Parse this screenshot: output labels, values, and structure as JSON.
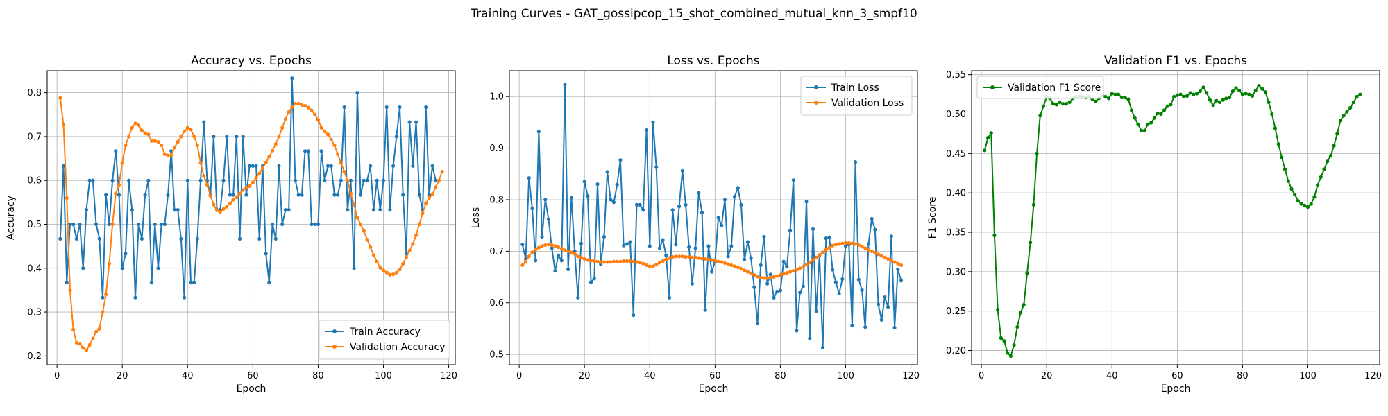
{
  "figure": {
    "suptitle": "Training Curves - GAT_gossipcop_15_shot_combined_mutual_knn_3_smpf10"
  },
  "chart_data": [
    {
      "type": "line",
      "title": "Accuracy vs. Epochs",
      "xlabel": "Epoch",
      "ylabel": "Accuracy",
      "xlim": [
        -3,
        122
      ],
      "ylim": [
        0.18,
        0.85
      ],
      "xticks": [
        0,
        20,
        40,
        60,
        80,
        100,
        120
      ],
      "yticks": [
        0.2,
        0.3,
        0.4,
        0.5,
        0.6,
        0.7,
        0.8
      ],
      "ytick_labels": [
        "0.2",
        "0.3",
        "0.4",
        "0.5",
        "0.6",
        "0.7",
        "0.8"
      ],
      "grid": true,
      "legend_position": "lower-right",
      "series": [
        {
          "name": "Train Accuracy",
          "color": "#1f77b4",
          "values": [
            0.467,
            0.633,
            0.367,
            0.5,
            0.5,
            0.467,
            0.5,
            0.4,
            0.533,
            0.6,
            0.6,
            0.5,
            0.467,
            0.333,
            0.567,
            0.5,
            0.6,
            0.667,
            0.567,
            0.4,
            0.433,
            0.6,
            0.533,
            0.333,
            0.5,
            0.467,
            0.567,
            0.6,
            0.367,
            0.5,
            0.4,
            0.5,
            0.5,
            0.567,
            0.667,
            0.533,
            0.533,
            0.467,
            0.333,
            0.6,
            0.367,
            0.367,
            0.467,
            0.6,
            0.733,
            0.6,
            0.567,
            0.7,
            0.533,
            0.533,
            0.6,
            0.7,
            0.567,
            0.567,
            0.7,
            0.467,
            0.7,
            0.567,
            0.633,
            0.633,
            0.633,
            0.467,
            0.633,
            0.433,
            0.367,
            0.5,
            0.467,
            0.633,
            0.5,
            0.533,
            0.533,
            0.833,
            0.6,
            0.567,
            0.567,
            0.667,
            0.667,
            0.5,
            0.5,
            0.5,
            0.667,
            0.6,
            0.633,
            0.633,
            0.567,
            0.567,
            0.6,
            0.767,
            0.533,
            0.6,
            0.4,
            0.8,
            0.567,
            0.6,
            0.6,
            0.633,
            0.533,
            0.6,
            0.533,
            0.6,
            0.767,
            0.533,
            0.633,
            0.7,
            0.767,
            0.567,
            0.433,
            0.733,
            0.633,
            0.733,
            0.567,
            0.533,
            0.767,
            0.567,
            0.633,
            0.6
          ]
        },
        {
          "name": "Validation Accuracy",
          "color": "#ff7f0e",
          "values": [
            0.788,
            0.727,
            0.56,
            0.35,
            0.26,
            0.23,
            0.228,
            0.218,
            0.213,
            0.225,
            0.24,
            0.255,
            0.262,
            0.3,
            0.34,
            0.41,
            0.5,
            0.57,
            0.59,
            0.64,
            0.68,
            0.7,
            0.72,
            0.73,
            0.726,
            0.714,
            0.708,
            0.705,
            0.69,
            0.69,
            0.688,
            0.68,
            0.66,
            0.657,
            0.657,
            0.675,
            0.688,
            0.7,
            0.712,
            0.72,
            0.716,
            0.7,
            0.68,
            0.64,
            0.61,
            0.59,
            0.565,
            0.545,
            0.532,
            0.528,
            0.535,
            0.54,
            0.548,
            0.556,
            0.562,
            0.57,
            0.578,
            0.584,
            0.587,
            0.595,
            0.606,
            0.616,
            0.628,
            0.641,
            0.654,
            0.668,
            0.683,
            0.7,
            0.72,
            0.74,
            0.756,
            0.768,
            0.775,
            0.775,
            0.772,
            0.77,
            0.766,
            0.76,
            0.75,
            0.738,
            0.72,
            0.712,
            0.705,
            0.693,
            0.68,
            0.66,
            0.64,
            0.62,
            0.6,
            0.57,
            0.545,
            0.515,
            0.5,
            0.485,
            0.465,
            0.448,
            0.43,
            0.415,
            0.401,
            0.395,
            0.39,
            0.385,
            0.386,
            0.39,
            0.397,
            0.41,
            0.425,
            0.44,
            0.455,
            0.475,
            0.5,
            0.525,
            0.548,
            0.56,
            0.568,
            0.585,
            0.6,
            0.62
          ]
        }
      ]
    },
    {
      "type": "line",
      "title": "Loss vs. Epochs",
      "xlabel": "Epoch",
      "ylabel": "Loss",
      "xlim": [
        -3,
        122
      ],
      "ylim": [
        0.48,
        1.05
      ],
      "xticks": [
        0,
        20,
        40,
        60,
        80,
        100,
        120
      ],
      "yticks": [
        0.5,
        0.6,
        0.7,
        0.8,
        0.9,
        1.0
      ],
      "ytick_labels": [
        "0.5",
        "0.6",
        "0.7",
        "0.8",
        "0.9",
        "1.0"
      ],
      "grid": true,
      "legend_position": "top-right",
      "series": [
        {
          "name": "Train Loss",
          "color": "#1f77b4",
          "values": [
            0.713,
            0.685,
            0.842,
            0.783,
            0.682,
            0.932,
            0.728,
            0.8,
            0.762,
            0.706,
            0.662,
            0.692,
            0.682,
            1.023,
            0.665,
            0.804,
            0.7,
            0.61,
            0.715,
            0.835,
            0.807,
            0.64,
            0.647,
            0.83,
            0.675,
            0.728,
            0.854,
            0.8,
            0.795,
            0.829,
            0.877,
            0.711,
            0.714,
            0.718,
            0.576,
            0.79,
            0.79,
            0.78,
            0.935,
            0.71,
            0.95,
            0.863,
            0.706,
            0.722,
            0.692,
            0.61,
            0.78,
            0.713,
            0.787,
            0.856,
            0.79,
            0.708,
            0.637,
            0.706,
            0.813,
            0.775,
            0.586,
            0.71,
            0.66,
            0.68,
            0.765,
            0.75,
            0.8,
            0.69,
            0.71,
            0.806,
            0.823,
            0.79,
            0.684,
            0.718,
            0.687,
            0.63,
            0.56,
            0.673,
            0.728,
            0.637,
            0.655,
            0.61,
            0.622,
            0.624,
            0.68,
            0.67,
            0.74,
            0.838,
            0.546,
            0.62,
            0.632,
            0.796,
            0.531,
            0.743,
            0.584,
            0.692,
            0.513,
            0.725,
            0.727,
            0.664,
            0.64,
            0.618,
            0.646,
            0.71,
            0.713,
            0.556,
            0.873,
            0.645,
            0.625,
            0.553,
            0.714,
            0.763,
            0.742,
            0.597,
            0.567,
            0.611,
            0.592,
            0.729,
            0.552,
            0.665,
            0.643
          ]
        },
        {
          "name": "Validation Loss",
          "color": "#ff7f0e",
          "values": [
            0.673,
            0.68,
            0.69,
            0.698,
            0.703,
            0.707,
            0.71,
            0.712,
            0.713,
            0.712,
            0.71,
            0.708,
            0.705,
            0.702,
            0.7,
            0.698,
            0.695,
            0.69,
            0.688,
            0.685,
            0.683,
            0.682,
            0.681,
            0.68,
            0.679,
            0.679,
            0.679,
            0.679,
            0.68,
            0.68,
            0.68,
            0.681,
            0.681,
            0.681,
            0.68,
            0.679,
            0.678,
            0.676,
            0.673,
            0.671,
            0.671,
            0.674,
            0.678,
            0.681,
            0.684,
            0.687,
            0.689,
            0.69,
            0.69,
            0.69,
            0.689,
            0.689,
            0.688,
            0.688,
            0.687,
            0.686,
            0.685,
            0.684,
            0.683,
            0.682,
            0.68,
            0.679,
            0.677,
            0.675,
            0.673,
            0.671,
            0.669,
            0.666,
            0.663,
            0.66,
            0.657,
            0.654,
            0.651,
            0.649,
            0.648,
            0.648,
            0.649,
            0.65,
            0.652,
            0.654,
            0.656,
            0.658,
            0.66,
            0.662,
            0.664,
            0.667,
            0.67,
            0.674,
            0.678,
            0.683,
            0.688,
            0.693,
            0.698,
            0.703,
            0.707,
            0.711,
            0.713,
            0.714,
            0.715,
            0.716,
            0.716,
            0.715,
            0.714,
            0.712,
            0.709,
            0.706,
            0.703,
            0.7,
            0.697,
            0.694,
            0.691,
            0.688,
            0.685,
            0.682,
            0.679,
            0.676,
            0.673
          ]
        }
      ]
    },
    {
      "type": "line",
      "title": "Validation F1 vs. Epochs",
      "xlabel": "Epoch",
      "ylabel": "F1 Score",
      "xlim": [
        -3,
        122
      ],
      "ylim": [
        0.182,
        0.555
      ],
      "xticks": [
        0,
        20,
        40,
        60,
        80,
        100,
        120
      ],
      "yticks": [
        0.2,
        0.25,
        0.3,
        0.35,
        0.4,
        0.45,
        0.5,
        0.55
      ],
      "ytick_labels": [
        "0.20",
        "0.25",
        "0.30",
        "0.35",
        "0.40",
        "0.45",
        "0.50",
        "0.55"
      ],
      "grid": true,
      "legend_position": "top-left",
      "series": [
        {
          "name": "Validation F1 Score",
          "color": "#008000",
          "values": [
            0.454,
            0.47,
            0.476,
            0.346,
            0.252,
            0.216,
            0.212,
            0.197,
            0.193,
            0.207,
            0.23,
            0.248,
            0.258,
            0.298,
            0.337,
            0.385,
            0.45,
            0.498,
            0.51,
            0.522,
            0.52,
            0.513,
            0.512,
            0.515,
            0.513,
            0.513,
            0.515,
            0.52,
            0.522,
            0.522,
            0.522,
            0.521,
            0.522,
            0.519,
            0.516,
            0.52,
            0.524,
            0.522,
            0.52,
            0.526,
            0.525,
            0.525,
            0.521,
            0.521,
            0.519,
            0.505,
            0.495,
            0.487,
            0.479,
            0.479,
            0.487,
            0.489,
            0.495,
            0.501,
            0.5,
            0.505,
            0.51,
            0.512,
            0.522,
            0.524,
            0.525,
            0.522,
            0.523,
            0.527,
            0.525,
            0.526,
            0.529,
            0.534,
            0.527,
            0.518,
            0.511,
            0.517,
            0.515,
            0.518,
            0.52,
            0.521,
            0.529,
            0.533,
            0.53,
            0.525,
            0.526,
            0.525,
            0.523,
            0.53,
            0.536,
            0.532,
            0.528,
            0.515,
            0.5,
            0.482,
            0.462,
            0.445,
            0.43,
            0.415,
            0.405,
            0.398,
            0.39,
            0.386,
            0.384,
            0.382,
            0.386,
            0.395,
            0.41,
            0.42,
            0.43,
            0.44,
            0.447,
            0.46,
            0.475,
            0.492,
            0.498,
            0.503,
            0.508,
            0.515,
            0.522,
            0.525
          ]
        }
      ]
    }
  ]
}
